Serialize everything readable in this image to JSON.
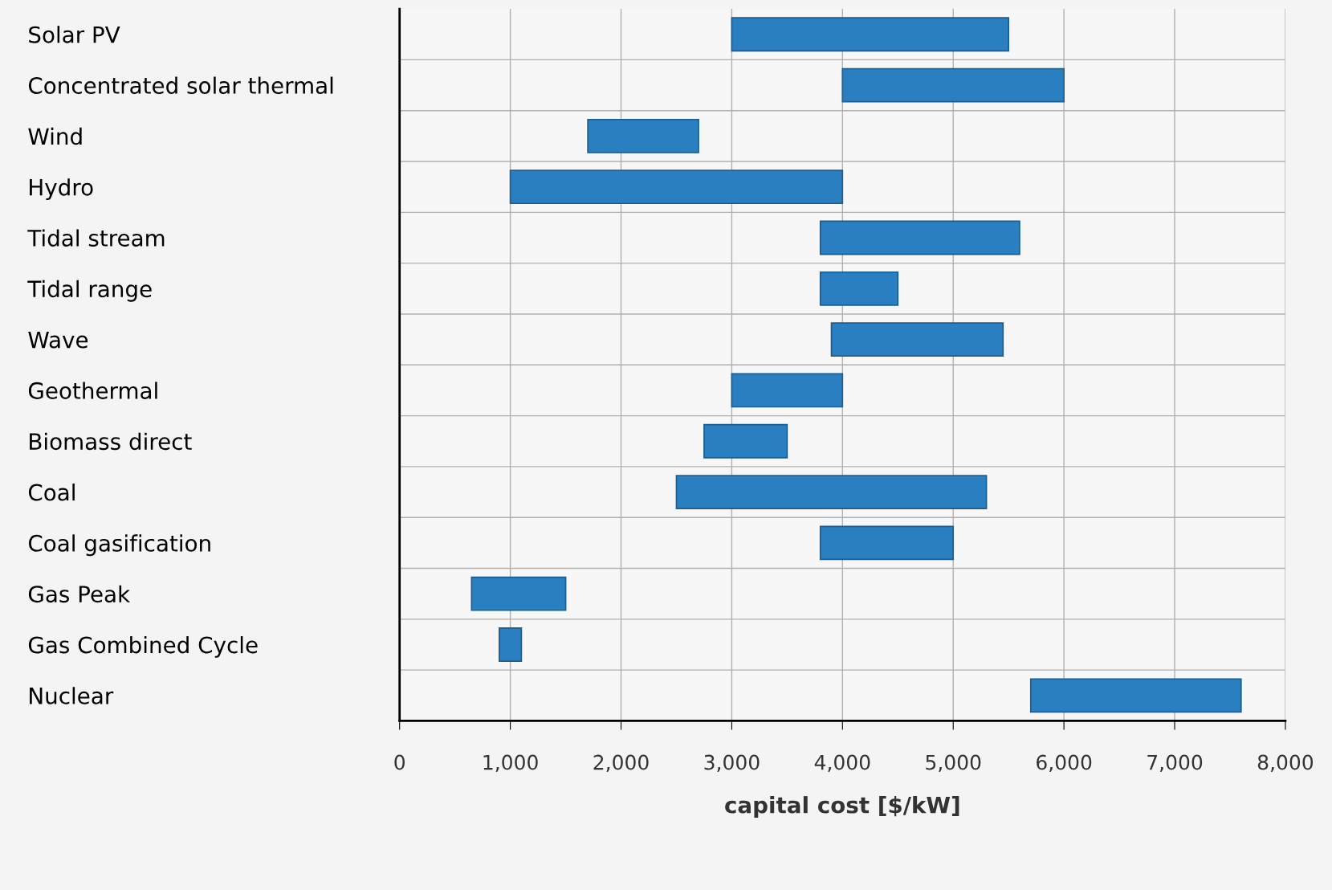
{
  "chart_data": {
    "type": "bar",
    "orientation": "horizontal",
    "xlabel": "capital cost [$/kW]",
    "categories": [
      "Solar PV",
      "Concentrated solar thermal",
      "Wind",
      "Hydro",
      "Tidal stream",
      "Tidal range",
      "Wave",
      "Geothermal",
      "Biomass direct",
      "Coal",
      "Coal gasification",
      "Gas Peak",
      "Gas Combined Cycle",
      "Nuclear"
    ],
    "base": [
      3000,
      4000,
      1700,
      1000,
      3800,
      3800,
      3900,
      3000,
      2750,
      2500,
      3800,
      650,
      900,
      5700
    ],
    "values": [
      2500,
      2000,
      1000,
      3000,
      1800,
      700,
      1550,
      1000,
      750,
      2800,
      1200,
      850,
      200,
      1900
    ],
    "color": "#2a7fc0",
    "xlim": [
      0,
      8000
    ],
    "xticks": [
      {
        "value": 0,
        "label": "0"
      },
      {
        "value": 1000,
        "label": "1,000"
      },
      {
        "value": 2000,
        "label": "2,000"
      },
      {
        "value": 3000,
        "label": "3,000"
      },
      {
        "value": 4000,
        "label": "4,000"
      },
      {
        "value": 5000,
        "label": "5,000"
      },
      {
        "value": 6000,
        "label": "6,000"
      },
      {
        "value": 7000,
        "label": "7,000"
      },
      {
        "value": 8000,
        "label": "8,000"
      }
    ],
    "grid": true
  }
}
